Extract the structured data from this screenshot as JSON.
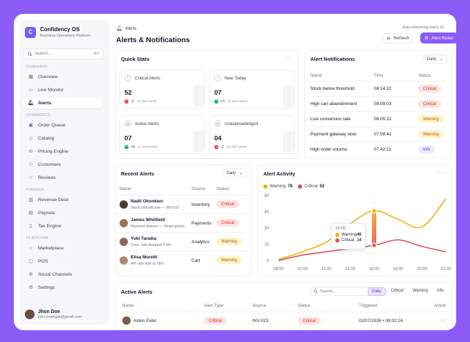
{
  "brand": {
    "name": "Confidency OS",
    "subtitle": "Business Operations Platform",
    "logo_letter": "C"
  },
  "sidebar": {
    "search_placeholder": "Search...",
    "search_shortcut": "⌘K",
    "sections": {
      "command": "COMMAND",
      "commerce": "COMMERCE",
      "finance": "FINANCE",
      "platform": "PLATFORM"
    },
    "items": [
      {
        "label": "Overview",
        "icon": "grid-icon"
      },
      {
        "label": "Live Monitor",
        "icon": "monitor-icon"
      },
      {
        "label": "Alerts",
        "icon": "bell-icon"
      },
      {
        "label": "Order Queue",
        "icon": "box-icon"
      },
      {
        "label": "Catalog",
        "icon": "tag-icon"
      },
      {
        "label": "Pricing Engine",
        "icon": "pricing-icon"
      },
      {
        "label": "Customers",
        "icon": "users-icon"
      },
      {
        "label": "Reviews",
        "icon": "star-icon"
      },
      {
        "label": "Revenue Desk",
        "icon": "chart-icon"
      },
      {
        "label": "Payouts",
        "icon": "wallet-icon"
      },
      {
        "label": "Tax Engine",
        "icon": "receipt-icon"
      },
      {
        "label": "Marketplace",
        "icon": "store-icon"
      },
      {
        "label": "POS",
        "icon": "pos-icon"
      },
      {
        "label": "Social Channels",
        "icon": "share-icon"
      },
      {
        "label": "Settings",
        "icon": "gear-icon"
      }
    ],
    "user": {
      "name": "Jhon Doe",
      "email": "john.example@gmail.com"
    }
  },
  "header": {
    "breadcrumb": "Alerts",
    "title": "Alerts & Notifications",
    "auto_refresh": "Auto-refreshing every 2s",
    "refresh_label": "Refresh",
    "rules_label": "Alert Rules"
  },
  "quick_stats": {
    "title": "Quick Stats",
    "more": "···",
    "last_week": "vs last week",
    "cards": [
      {
        "label": "Critical Alerts",
        "value": "52",
        "delta": "-2"
      },
      {
        "label": "New Today",
        "value": "07",
        "delta": "+3"
      },
      {
        "label": "Active Alerts",
        "value": "07",
        "delta": "+5"
      },
      {
        "label": "Unacknowledged",
        "value": "04",
        "delta": "-2"
      }
    ]
  },
  "alert_notifications": {
    "title": "Alert Notifications",
    "filter": "Daily",
    "columns": [
      "Name",
      "Time",
      "Status"
    ],
    "rows": [
      {
        "name": "Stock below threshold",
        "time": "08:14:22",
        "status": "Critical"
      },
      {
        "name": "High cart abandonment",
        "time": "08:09:03",
        "status": "Critical"
      },
      {
        "name": "Low conversion rate",
        "time": "08:05:21",
        "status": "Warning"
      },
      {
        "name": "Payment gateway slow",
        "time": "07:58:41",
        "status": "Warning"
      },
      {
        "name": "High order volume",
        "time": "07:42:11",
        "status": "Info"
      }
    ]
  },
  "recent_alerts": {
    "title": "Recent Alerts",
    "filter": "Daily",
    "columns": [
      "Name",
      "Source",
      "Status"
    ],
    "rows": [
      {
        "name": "Nadil Okonkwo",
        "sub": "Stock critically low — INV-023",
        "source": "Inventory",
        "status": "Critical"
      },
      {
        "name": "James Whitfield",
        "sub": "Payment timeout — Stripe gatew...",
        "source": "Payments",
        "status": "Critical"
      },
      {
        "name": "Yuki Tanaka",
        "sub": "Conv. rate dropped 0.4%",
        "source": "Analytics",
        "status": "Warning"
      },
      {
        "name": "Elisa Moretti",
        "sub": "API rate limit at 78%",
        "source": "Cart",
        "status": "Warning"
      }
    ]
  },
  "alert_activity": {
    "title": "Alert Activity",
    "more": "···",
    "legend": [
      {
        "name": "Warning",
        "total": "78"
      },
      {
        "name": "Critical",
        "total": "52"
      }
    ],
    "tooltip": {
      "time": "16:00",
      "warning": "46",
      "critical": "14"
    }
  },
  "chart_data": {
    "type": "line",
    "title": "Alert Activity",
    "x": [
      "08:00",
      "10:00",
      "12:00",
      "14:00",
      "16:00",
      "18:00",
      "20:00",
      "22:00"
    ],
    "ylim": [
      0,
      60
    ],
    "yticks": [
      0,
      15,
      30,
      45,
      60
    ],
    "series": [
      {
        "name": "Warning",
        "color": "#eab308",
        "values": [
          1,
          8,
          17,
          34,
          46,
          38,
          31,
          57
        ]
      },
      {
        "name": "Critical",
        "color": "#dc4f4f",
        "values": [
          0,
          5,
          8,
          11,
          14,
          19,
          13,
          8
        ]
      }
    ],
    "grid": true
  },
  "active_alerts": {
    "title": "Active Alerts",
    "search_placeholder": "Search...",
    "tabs": [
      "Daily",
      "Critical",
      "Warning",
      "Info"
    ],
    "columns": [
      "Name",
      "Alert Type",
      "Source",
      "Status",
      "Triggered",
      "Action"
    ],
    "rows": [
      {
        "name": "Aiden Patel",
        "type": "Critical",
        "source": "INV-023",
        "status": "Critical",
        "triggered": "02/07/2026 • 08:02:24",
        "action": "···"
      }
    ]
  }
}
